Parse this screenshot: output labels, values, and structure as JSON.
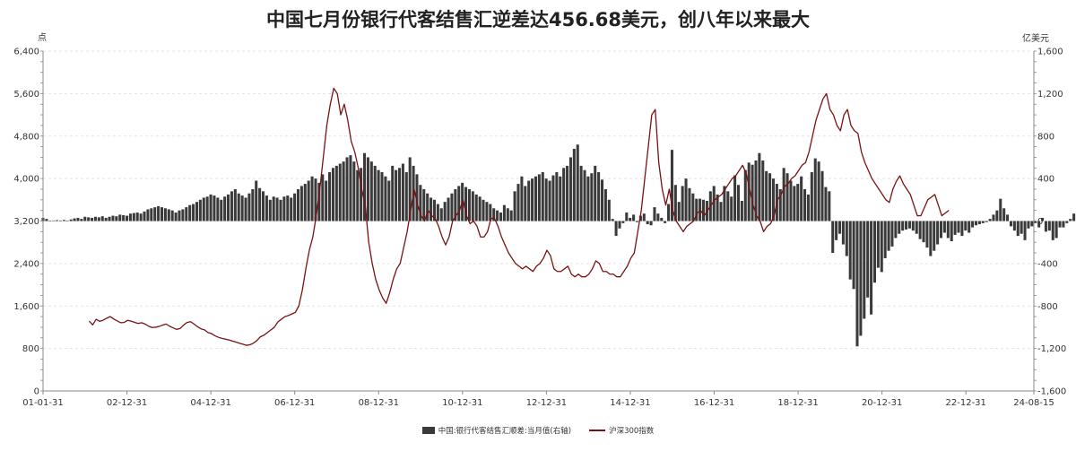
{
  "chart_data": {
    "type": "bar+line",
    "title": "中国七月份银行代客结售汇逆差达456.68美元，创八年以来最大",
    "left_unit": "点",
    "right_unit": "亿美元",
    "left_ylim": [
      0,
      6400
    ],
    "left_ticks": [
      "0",
      "800",
      "1,600",
      "2,400",
      "3,200",
      "4,000",
      "4,800",
      "5,600",
      "6,400"
    ],
    "right_ylim": [
      -1600,
      1600
    ],
    "right_ticks": [
      "-1,600",
      "-1,200",
      "-800",
      "-400",
      "0",
      "400",
      "800",
      "1,200",
      "1,600"
    ],
    "x_tick_labels": [
      "01-01-31",
      "02-12-31",
      "04-12-31",
      "06-12-31",
      "08-12-31",
      "10-12-31",
      "12-12-31",
      "14-12-31",
      "16-12-31",
      "18-12-31",
      "20-12-31",
      "22-12-31",
      "24-08-15"
    ],
    "x_range_years": [
      2001.0,
      2024.62
    ],
    "grid": true,
    "legend_position": "bottom",
    "series": [
      {
        "name": "中国:银行代客结售汇顺差:当月值(右轴)",
        "type": "bar",
        "axis": "right",
        "color": "#3a3a3a",
        "x_start": 2001.0,
        "step": 0.0833,
        "values": [
          30,
          20,
          0,
          5,
          8,
          5,
          10,
          5,
          15,
          25,
          30,
          20,
          40,
          35,
          30,
          40,
          35,
          45,
          30,
          40,
          50,
          45,
          60,
          55,
          50,
          70,
          75,
          80,
          70,
          90,
          110,
          120,
          130,
          140,
          130,
          120,
          110,
          100,
          80,
          100,
          110,
          130,
          150,
          160,
          180,
          200,
          220,
          230,
          250,
          240,
          220,
          200,
          230,
          250,
          280,
          300,
          260,
          240,
          220,
          260,
          300,
          380,
          310,
          280,
          240,
          200,
          230,
          220,
          200,
          230,
          240,
          220,
          260,
          300,
          330,
          350,
          380,
          420,
          400,
          360,
          440,
          380,
          460,
          500,
          520,
          540,
          560,
          600,
          620,
          560,
          480,
          500,
          640,
          600,
          560,
          520,
          480,
          460,
          420,
          380,
          520,
          480,
          500,
          540,
          460,
          600,
          520,
          440,
          340,
          300,
          260,
          220,
          200,
          160,
          120,
          180,
          220,
          260,
          300,
          330,
          360,
          320,
          300,
          280,
          250,
          230,
          200,
          180,
          160,
          120,
          100,
          80,
          150,
          120,
          100,
          280,
          350,
          420,
          330,
          380,
          400,
          420,
          440,
          460,
          400,
          380,
          430,
          460,
          420,
          500,
          520,
          600,
          680,
          720,
          520,
          480,
          420,
          450,
          520,
          460,
          390,
          300,
          200,
          20,
          -140,
          -70,
          -20,
          80,
          30,
          60,
          -10,
          50,
          70,
          -30,
          -40,
          130,
          70,
          30,
          -20,
          160,
          670,
          340,
          180,
          330,
          400,
          310,
          260,
          210,
          210,
          200,
          190,
          280,
          330,
          250,
          180,
          330,
          280,
          230,
          430,
          340,
          190,
          480,
          550,
          530,
          570,
          640,
          570,
          470,
          450,
          400,
          350,
          300,
          500,
          450,
          380,
          330,
          350,
          420,
          300,
          250,
          460,
          590,
          560,
          470,
          320,
          280,
          -300,
          -180,
          -120,
          -220,
          -330,
          -550,
          -640,
          -1180,
          -1080,
          -920,
          -720,
          -880,
          -580,
          -440,
          -480,
          -350,
          -280,
          -240,
          -160,
          -120,
          -90,
          -80,
          -70,
          -90,
          -120,
          -170,
          -200,
          -250,
          -330,
          -280,
          -220,
          -160,
          -110,
          -160,
          -190,
          -130,
          -110,
          -140,
          -90,
          -110,
          -60,
          -40,
          -30,
          -20,
          -10,
          20,
          60,
          100,
          210,
          120,
          60,
          -50,
          -90,
          -140,
          -120,
          -180,
          -70,
          -50,
          -20,
          -60,
          30,
          -100,
          -90,
          -180,
          -160,
          -60,
          -60,
          -20,
          20,
          70,
          80,
          120,
          200,
          -20,
          -30,
          40,
          160,
          90,
          20,
          -20,
          -130,
          -170,
          -150,
          -180,
          -240,
          -220,
          -80,
          -60,
          -60,
          20,
          -30,
          -50,
          -50,
          -90,
          90,
          190,
          40,
          120,
          160,
          260,
          640,
          390,
          300,
          210,
          280,
          200,
          260,
          40,
          100,
          210,
          370,
          380,
          250,
          280,
          430,
          340,
          120,
          140,
          300,
          360,
          210,
          260,
          300,
          480,
          390,
          180,
          110,
          170,
          -110,
          -150,
          -120,
          -60,
          -80,
          -20,
          10,
          -10,
          0,
          -30,
          -100,
          -120,
          -160,
          -190,
          -210,
          -290,
          -350,
          -360,
          -460
        ],
        "peak_bar_value": 640,
        "trough_bar_value": -1180,
        "last_bar_value": -457
      },
      {
        "name": "沪深300指数",
        "type": "line",
        "axis": "left",
        "color": "#7a1212",
        "x_start": 2002.1,
        "step": 0.0833,
        "values": [
          1316,
          1244,
          1350,
          1311,
          1332,
          1370,
          1401,
          1356,
          1320,
          1285,
          1290,
          1330,
          1315,
          1292,
          1270,
          1285,
          1260,
          1220,
          1195,
          1200,
          1215,
          1240,
          1260,
          1220,
          1190,
          1160,
          1175,
          1240,
          1290,
          1305,
          1260,
          1210,
          1170,
          1150,
          1100,
          1080,
          1040,
          1010,
          990,
          975,
          960,
          940,
          920,
          900,
          880,
          860,
          870,
          900,
          950,
          1020,
          1050,
          1100,
          1150,
          1200,
          1300,
          1350,
          1400,
          1420,
          1450,
          1480,
          1600,
          1900,
          2300,
          2650,
          2900,
          3300,
          3800,
          4400,
          5000,
          5400,
          5700,
          5600,
          5200,
          5400,
          5100,
          4700,
          4500,
          4200,
          3800,
          3500,
          2800,
          2400,
          2100,
          1900,
          1750,
          1650,
          1850,
          2100,
          2300,
          2400,
          2700,
          3000,
          3400,
          3800,
          3500,
          3300,
          3200,
          3400,
          3300,
          3250,
          3100,
          2900,
          2750,
          2900,
          3200,
          3300,
          3400,
          3600,
          3300,
          3150,
          3200,
          3100,
          2900,
          2900,
          3000,
          3250,
          3250,
          3100,
          2900,
          2750,
          2600,
          2500,
          2400,
          2350,
          2300,
          2350,
          2300,
          2250,
          2350,
          2400,
          2500,
          2650,
          2550,
          2300,
          2250,
          2250,
          2300,
          2350,
          2200,
          2150,
          2200,
          2150,
          2150,
          2200,
          2300,
          2450,
          2400,
          2250,
          2250,
          2200,
          2200,
          2150,
          2150,
          2250,
          2350,
          2500,
          2600,
          3000,
          3400,
          4000,
          4600,
          5200,
          5300,
          4300,
          3800,
          3500,
          3800,
          3400,
          3200,
          3100,
          3000,
          3100,
          3150,
          3200,
          3350,
          3400,
          3300,
          3400,
          3500,
          3600,
          3650,
          3700,
          3800,
          3900,
          4000,
          4050,
          4150,
          4250,
          4100,
          3800,
          3500,
          3300,
          3200,
          3000,
          3100,
          3150,
          3300,
          3600,
          3700,
          3850,
          3900,
          4000,
          4050,
          4150,
          4250,
          4300,
          4500,
          4800,
          5100,
          5300,
          5500,
          5600,
          5300,
          5200,
          5000,
          4900,
          5200,
          5300,
          5000,
          4900,
          4850,
          4500,
          4300,
          4150,
          4000,
          3900,
          3800,
          3700,
          3600,
          3550,
          3800,
          3950,
          4050,
          3900,
          3800,
          3700,
          3500,
          3300,
          3300,
          3450,
          3600,
          3650,
          3700,
          3500,
          3300,
          3350,
          3400
        ]
      }
    ]
  },
  "legend": {
    "bar_label": "中国:银行代客结售汇顺差:当月值(右轴)",
    "line_label": "沪深300指数"
  }
}
